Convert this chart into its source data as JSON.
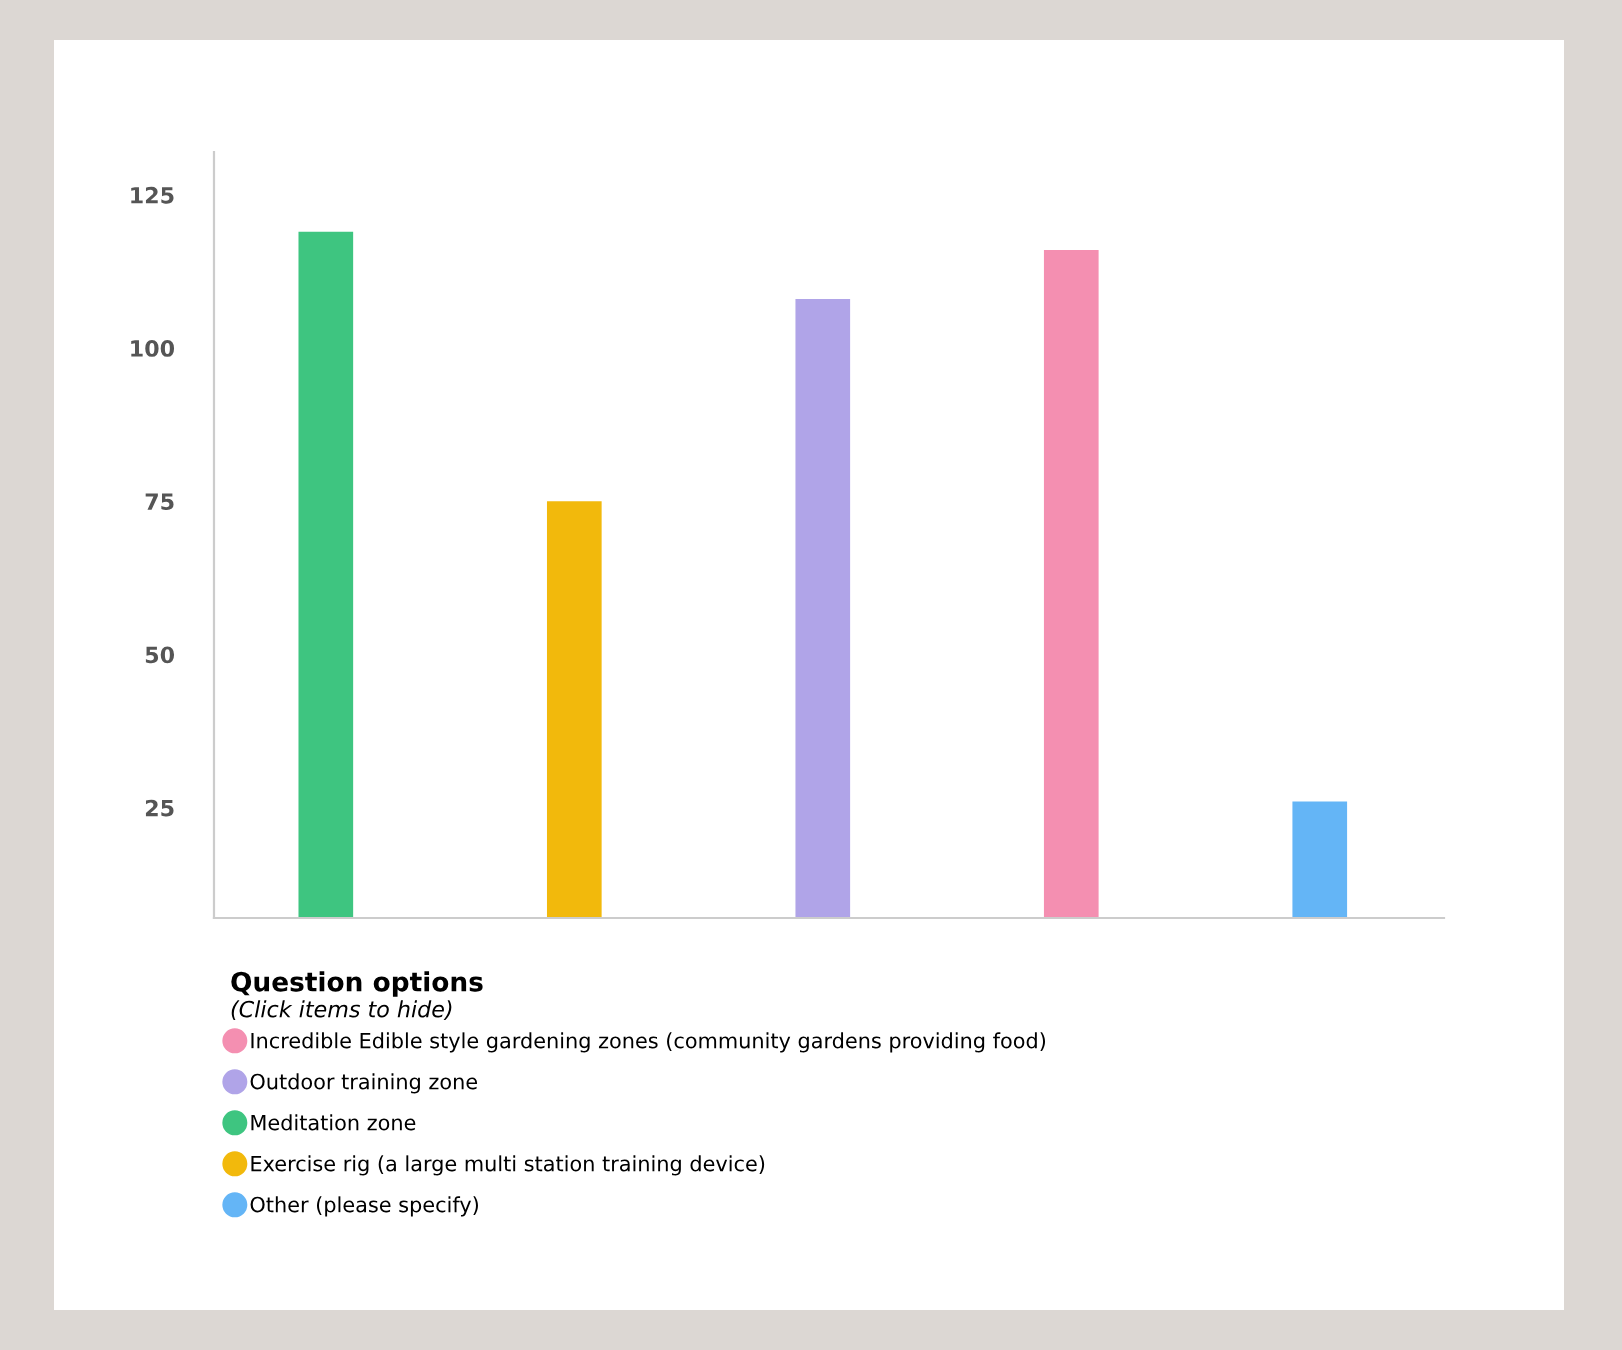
{
  "chart_data": {
    "type": "bar",
    "categories": [
      null,
      null,
      null,
      null,
      null
    ],
    "series": [
      {
        "name": "Incredible Edible style gardening zones (community gardens providing food)",
        "color": "#f48fb1",
        "values": [
          null,
          null,
          null,
          116,
          null
        ]
      },
      {
        "name": "Outdoor training zone",
        "color": "#b0a4e8",
        "values": [
          null,
          null,
          108,
          null,
          null
        ]
      },
      {
        "name": "Meditation zone",
        "color": "#3ec580",
        "values": [
          119,
          null,
          null,
          null,
          null
        ]
      },
      {
        "name": "Exercise rig (a large multi station training device)",
        "color": "#f2b90c",
        "values": [
          null,
          75,
          null,
          null,
          null
        ]
      },
      {
        "name": "Other (please specify)",
        "color": "#64b5f6",
        "values": [
          null,
          null,
          null,
          null,
          26
        ]
      }
    ],
    "ylim": [
      7,
      132
    ],
    "yticks": [
      25,
      50,
      75,
      100,
      125
    ],
    "tick_labels": "y",
    "grid": false,
    "legend": "bottom",
    "legend_title": "Question options",
    "annotations": [
      "(Click items to hide)"
    ]
  }
}
